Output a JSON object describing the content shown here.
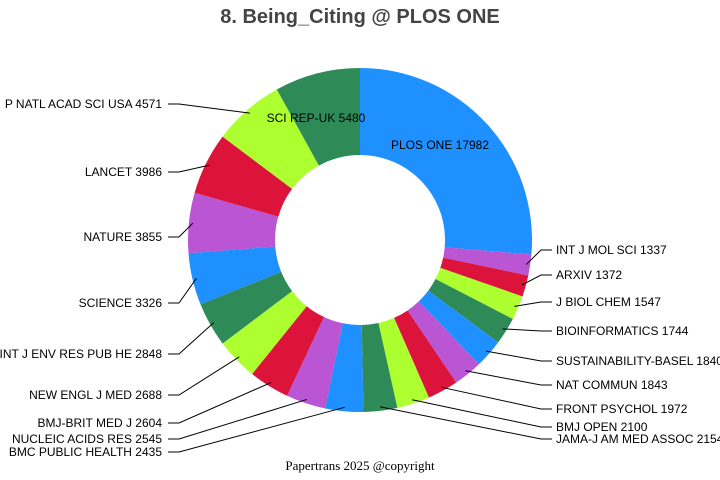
{
  "chart_data": {
    "type": "pie",
    "variant": "donut",
    "title": "8. Being_Citing @ PLOS ONE",
    "footer": "Papertrans 2025 @copyright",
    "start": "top, clockwise",
    "slices": [
      {
        "label": "PLOS ONE",
        "value": 17982,
        "color": "#1E90FF"
      },
      {
        "label": "INT J MOL SCI",
        "value": 1337,
        "color": "#BA55D3"
      },
      {
        "label": "ARXIV",
        "value": 1372,
        "color": "#DC143C"
      },
      {
        "label": "J BIOL CHEM",
        "value": 1547,
        "color": "#ADFF2F"
      },
      {
        "label": "BIOINFORMATICS",
        "value": 1744,
        "color": "#2E8B57"
      },
      {
        "label": "SUSTAINABILITY-BASEL",
        "value": 1840,
        "color": "#1E90FF"
      },
      {
        "label": "NAT COMMUN",
        "value": 1843,
        "color": "#BA55D3"
      },
      {
        "label": "FRONT PSYCHOL",
        "value": 1972,
        "color": "#DC143C"
      },
      {
        "label": "BMJ OPEN",
        "value": 2100,
        "color": "#ADFF2F"
      },
      {
        "label": "JAMA-J AM MED ASSOC",
        "value": 2154,
        "color": "#2E8B57"
      },
      {
        "label": "BMC PUBLIC HEALTH",
        "value": 2435,
        "color": "#1E90FF"
      },
      {
        "label": "NUCLEIC ACIDS RES",
        "value": 2545,
        "color": "#BA55D3"
      },
      {
        "label": "BMJ-BRIT MED J",
        "value": 2604,
        "color": "#DC143C"
      },
      {
        "label": "NEW ENGL J MED",
        "value": 2688,
        "color": "#ADFF2F"
      },
      {
        "label": "INT J ENV RES PUB HE",
        "value": 2848,
        "color": "#2E8B57"
      },
      {
        "label": "SCIENCE",
        "value": 3326,
        "color": "#1E90FF"
      },
      {
        "label": "NATURE",
        "value": 3855,
        "color": "#BA55D3"
      },
      {
        "label": "LANCET",
        "value": 3986,
        "color": "#DC143C"
      },
      {
        "label": "P NATL ACAD SCI USA",
        "value": 4571,
        "color": "#ADFF2F"
      },
      {
        "label": "SCI REP-UK",
        "value": 5480,
        "color": "#2E8B57"
      }
    ]
  }
}
